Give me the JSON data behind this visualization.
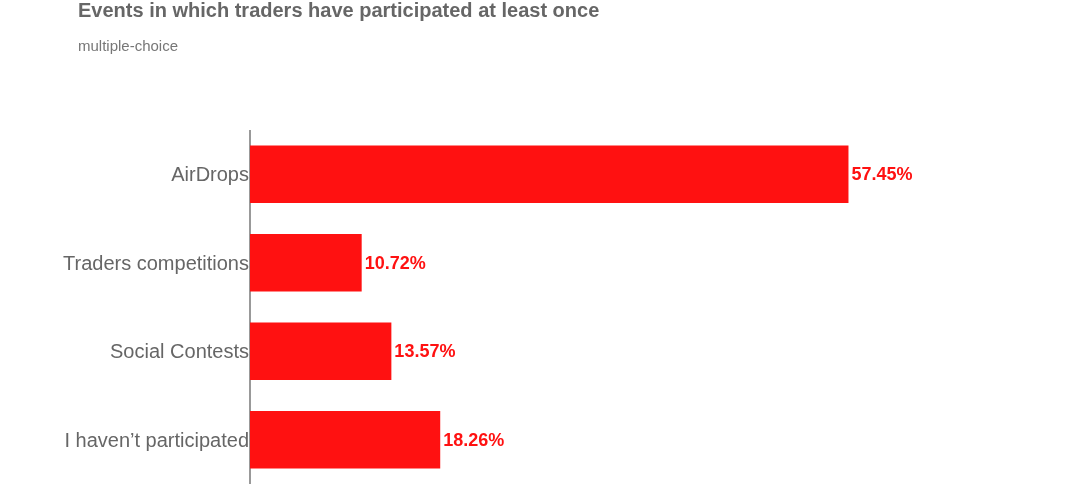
{
  "chart_data": {
    "type": "bar",
    "orientation": "horizontal",
    "title": "Events in which traders have participated at least once",
    "subtitle": "multiple-choice",
    "categories": [
      "AirDrops",
      "Traders competitions",
      "Social Contests",
      "I haven’t participated"
    ],
    "values": [
      57.45,
      10.72,
      13.57,
      18.26
    ],
    "value_labels": [
      "57.45%",
      "10.72%",
      "13.57%",
      "18.26%"
    ],
    "color": "#ff1111",
    "grid": false,
    "legend": false
  }
}
